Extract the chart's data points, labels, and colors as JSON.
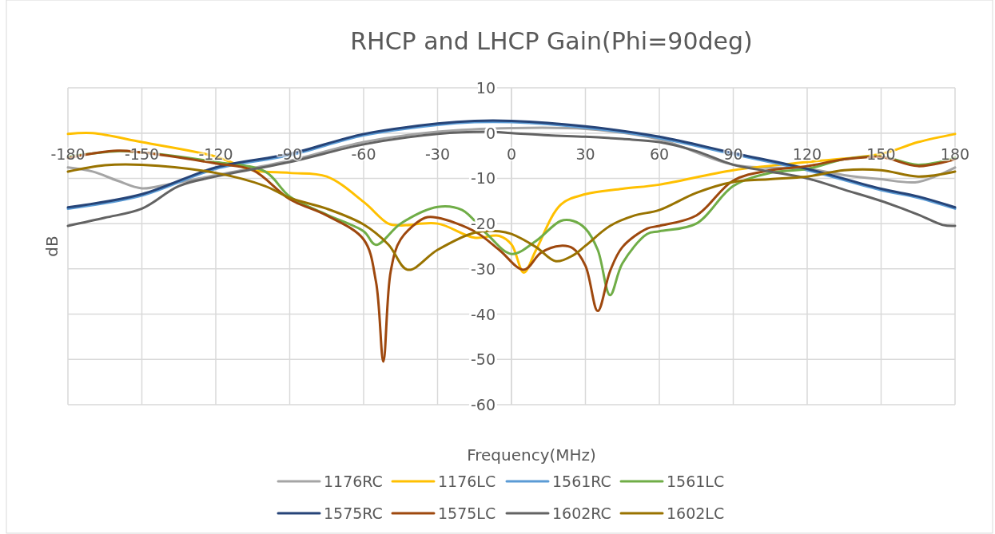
{
  "chart_data": {
    "type": "line",
    "title": "RHCP and LHCP Gain(Phi=90deg)",
    "xlabel": "Frequency(MHz)",
    "ylabel": "dB",
    "xlim": [
      -180,
      180
    ],
    "xticks": [
      -180,
      -150,
      -120,
      -90,
      -60,
      -30,
      0,
      30,
      60,
      90,
      120,
      150,
      180
    ],
    "ylim": [
      -60,
      10
    ],
    "yticks": [
      -60,
      -50,
      -40,
      -30,
      -20,
      -10,
      0,
      10
    ],
    "grid": true,
    "legend": "bottom",
    "marker": "none",
    "line_style": "solid",
    "series": [
      {
        "name": "1176RC",
        "color": "#a5a5a5",
        "x": [
          -180,
          -170,
          -160,
          -150,
          -140,
          -120,
          -90,
          -60,
          -30,
          0,
          30,
          60,
          90,
          120,
          135,
          150,
          165,
          180
        ],
        "values": [
          -7.6,
          -8.5,
          -10.5,
          -12.2,
          -11.4,
          -9.3,
          -6.1,
          -2,
          0.3,
          1.1,
          0.9,
          -1.4,
          -7,
          -7.9,
          -9.3,
          -10.2,
          -10.8,
          -7.6
        ]
      },
      {
        "name": "1176LC",
        "color": "#ffc000",
        "x": [
          -180,
          -170,
          -150,
          -120,
          -105,
          -90,
          -75,
          -60,
          -50,
          -45,
          -30,
          -15,
          -5,
          0,
          5,
          10,
          20,
          30,
          45,
          60,
          90,
          120,
          150,
          165,
          180
        ],
        "values": [
          -0.2,
          0,
          -2,
          -5.2,
          -8.2,
          -8.8,
          -9.6,
          -15.2,
          -20,
          -20.4,
          -20,
          -23.1,
          -22.7,
          -24.6,
          -30.8,
          -25.8,
          -15.8,
          -13.5,
          -12.3,
          -11.4,
          -8.2,
          -6.4,
          -4.6,
          -2,
          -0.2
        ]
      },
      {
        "name": "1561RC",
        "color": "#5b9bd5",
        "x": [
          -180,
          -150,
          -120,
          -90,
          -60,
          -30,
          -15,
          0,
          30,
          60,
          90,
          120,
          150,
          165,
          180
        ],
        "values": [
          -16.7,
          -13.8,
          -7.9,
          -4.9,
          -0.5,
          1.8,
          2.4,
          2.4,
          1.2,
          -1.1,
          -4.7,
          -8.2,
          -12.6,
          -14.3,
          -16.7
        ]
      },
      {
        "name": "1561LC",
        "color": "#70ad47",
        "x": [
          -180,
          -160,
          -150,
          -120,
          -100,
          -90,
          -75,
          -60,
          -55,
          -45,
          -30,
          -20,
          -10,
          0,
          10,
          20,
          25,
          30,
          35,
          40,
          45,
          55,
          60,
          75,
          90,
          105,
          120,
          135,
          150,
          165,
          180
        ],
        "values": [
          -5.2,
          -4,
          -4.3,
          -6.4,
          -8.5,
          -14,
          -18,
          -21.7,
          -24.7,
          -20,
          -16.3,
          -17,
          -22.3,
          -26.7,
          -23.8,
          -19.4,
          -19.4,
          -21.1,
          -25.8,
          -35.8,
          -28.8,
          -22.3,
          -21.7,
          -20,
          -11.7,
          -8.8,
          -7.9,
          -5.8,
          -5.2,
          -7,
          -5.5
        ]
      },
      {
        "name": "1575RC",
        "color": "#264478",
        "x": [
          -180,
          -150,
          -120,
          -90,
          -60,
          -30,
          -15,
          0,
          30,
          60,
          90,
          120,
          150,
          165,
          180
        ],
        "values": [
          -16.4,
          -13.5,
          -7.6,
          -4.6,
          -0.2,
          2.1,
          2.7,
          2.7,
          1.5,
          -0.8,
          -4.4,
          -7.9,
          -12.3,
          -14,
          -16.4
        ]
      },
      {
        "name": "1575LC",
        "color": "#9e480e",
        "x": [
          -180,
          -160,
          -150,
          -120,
          -105,
          -90,
          -75,
          -60,
          -55,
          -52,
          -49,
          -45,
          -35,
          -30,
          -15,
          -5,
          5,
          12,
          20,
          25,
          30,
          35,
          40,
          45,
          55,
          60,
          75,
          90,
          105,
          120,
          135,
          150,
          165,
          180
        ],
        "values": [
          -5.5,
          -3.9,
          -4.3,
          -6.7,
          -8.2,
          -14.6,
          -18.2,
          -23.5,
          -32.8,
          -50.5,
          -30.5,
          -23.5,
          -18.7,
          -18.7,
          -21.7,
          -25.8,
          -30.2,
          -26.4,
          -24.9,
          -25.5,
          -29.3,
          -39.3,
          -30.5,
          -25.2,
          -21.1,
          -20.5,
          -18.2,
          -10.5,
          -8.2,
          -7.3,
          -5.8,
          -5.3,
          -7.3,
          -5.8
        ]
      },
      {
        "name": "1602RC",
        "color": "#636363",
        "x": [
          -180,
          -165,
          -150,
          -135,
          -120,
          -90,
          -60,
          -30,
          -10,
          0,
          15,
          30,
          45,
          60,
          75,
          90,
          105,
          120,
          135,
          150,
          165,
          175,
          180
        ],
        "values": [
          -20.5,
          -18.7,
          -16.7,
          -11.7,
          -9.6,
          -6.4,
          -2.5,
          -0.2,
          0.3,
          0,
          -0.5,
          -0.8,
          -1.3,
          -2,
          -4,
          -7,
          -8.5,
          -10,
          -12.5,
          -15,
          -18,
          -20.3,
          -20.5
        ]
      },
      {
        "name": "1602LC",
        "color": "#997300",
        "x": [
          -180,
          -165,
          -150,
          -120,
          -100,
          -90,
          -75,
          -60,
          -50,
          -42,
          -30,
          -15,
          -5,
          0,
          10,
          18,
          25,
          30,
          40,
          50,
          60,
          75,
          90,
          105,
          120,
          135,
          150,
          165,
          180
        ],
        "values": [
          -8.5,
          -7.1,
          -7,
          -8.8,
          -11.7,
          -14.3,
          -16.7,
          -20.2,
          -24.6,
          -30.2,
          -25.8,
          -22,
          -21.7,
          -22.3,
          -25.2,
          -28.3,
          -27,
          -24.9,
          -20.5,
          -18.2,
          -17,
          -13.2,
          -10.8,
          -10.2,
          -9.6,
          -8.2,
          -8.2,
          -9.6,
          -8.5
        ]
      }
    ]
  }
}
